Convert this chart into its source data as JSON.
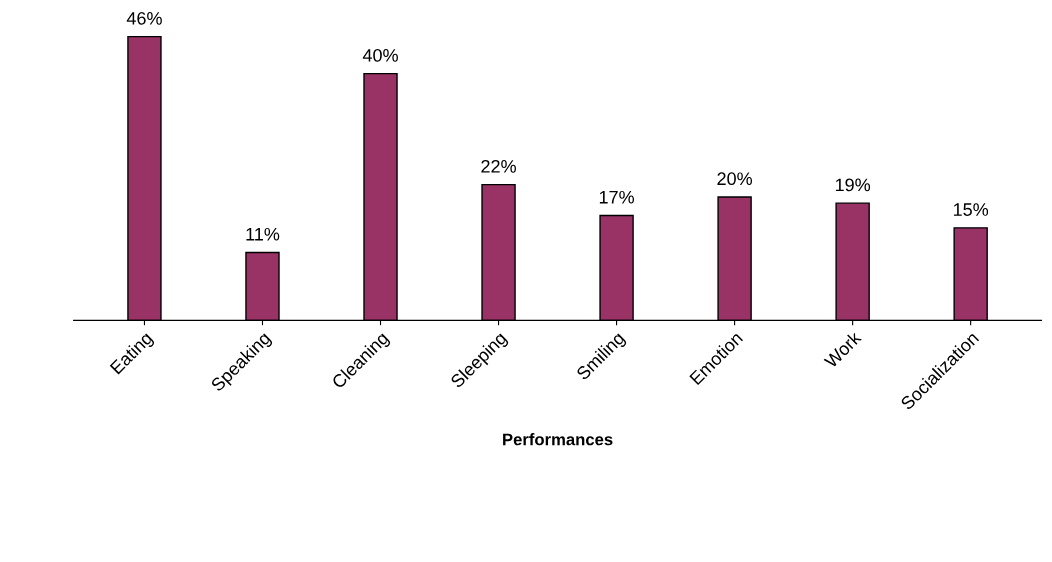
{
  "chart_data": {
    "type": "bar",
    "xlabel": "Performances",
    "categories": [
      "Eating",
      "Speaking",
      "Cleaning",
      "Sleeping",
      "Smiling",
      "Emotion",
      "Work",
      "Socialization"
    ],
    "values": [
      46,
      11,
      40,
      22,
      17,
      20,
      19,
      15
    ],
    "value_labels": [
      "46%",
      "11%",
      "40%",
      "22%",
      "17%",
      "20%",
      "19%",
      "15%"
    ],
    "color": "#993366",
    "grid": false,
    "legend": false
  }
}
